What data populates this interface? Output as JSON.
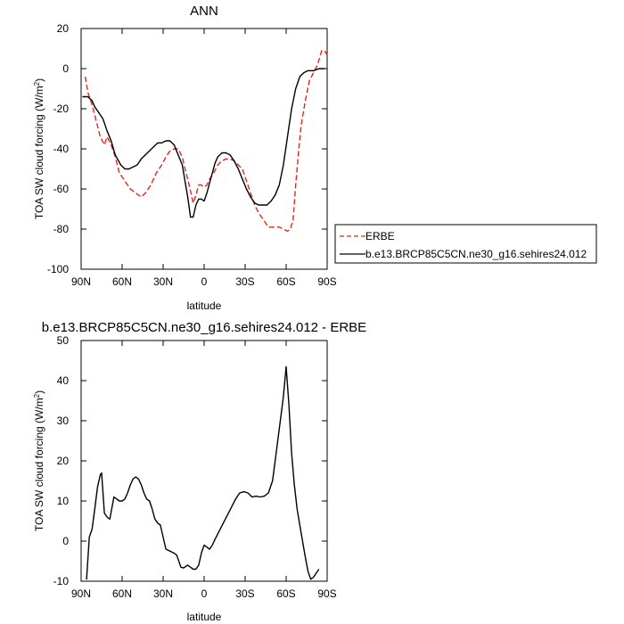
{
  "chart_data": [
    {
      "type": "line",
      "title": "ANN",
      "xlabel": "latitude",
      "ylabel": "TOA SW cloud forcing (W/m²)",
      "xlim": [
        90,
        -90
      ],
      "ylim": [
        -100,
        20
      ],
      "xticks": [
        {
          "value": 90,
          "label": "90N"
        },
        {
          "value": 60,
          "label": "60N"
        },
        {
          "value": 30,
          "label": "30N"
        },
        {
          "value": 0,
          "label": "0"
        },
        {
          "value": -30,
          "label": "30S"
        },
        {
          "value": -60,
          "label": "60S"
        },
        {
          "value": -90,
          "label": "90S"
        }
      ],
      "yticks": [
        20,
        0,
        -20,
        -40,
        -60,
        -80,
        -100
      ],
      "legend_position": "right",
      "series": [
        {
          "name": "ERBE",
          "color": "#e8231f",
          "style": "dashed",
          "points": [
            [
              87,
              -4
            ],
            [
              85,
              -12
            ],
            [
              82,
              -18
            ],
            [
              79,
              -26
            ],
            [
              76,
              -34
            ],
            [
              73,
              -38
            ],
            [
              71,
              -34
            ],
            [
              68,
              -38
            ],
            [
              65,
              -44
            ],
            [
              62,
              -52
            ],
            [
              58,
              -56
            ],
            [
              54,
              -60
            ],
            [
              50,
              -62
            ],
            [
              46,
              -64
            ],
            [
              43,
              -62
            ],
            [
              39,
              -58
            ],
            [
              35,
              -52
            ],
            [
              31,
              -48
            ],
            [
              28,
              -44
            ],
            [
              25,
              -41
            ],
            [
              22,
              -40
            ],
            [
              19,
              -40
            ],
            [
              16,
              -44
            ],
            [
              14,
              -50
            ],
            [
              12,
              -55
            ],
            [
              10,
              -61
            ],
            [
              8,
              -67
            ],
            [
              6,
              -63
            ],
            [
              4,
              -58
            ],
            [
              2,
              -58
            ],
            [
              0,
              -59
            ],
            [
              -2,
              -58
            ],
            [
              -4,
              -55
            ],
            [
              -7,
              -52
            ],
            [
              -10,
              -48
            ],
            [
              -13,
              -46
            ],
            [
              -16,
              -45
            ],
            [
              -19,
              -45
            ],
            [
              -22,
              -46
            ],
            [
              -25,
              -48
            ],
            [
              -28,
              -50
            ],
            [
              -31,
              -56
            ],
            [
              -34,
              -62
            ],
            [
              -37,
              -68
            ],
            [
              -40,
              -72
            ],
            [
              -44,
              -76
            ],
            [
              -47,
              -79
            ],
            [
              -51,
              -79
            ],
            [
              -55,
              -79
            ],
            [
              -58,
              -80
            ],
            [
              -61,
              -81
            ],
            [
              -63,
              -80
            ],
            [
              -65,
              -76
            ],
            [
              -67,
              -58
            ],
            [
              -69,
              -42
            ],
            [
              -71,
              -28
            ],
            [
              -74,
              -16
            ],
            [
              -77,
              -6
            ],
            [
              -80,
              -2
            ],
            [
              -83,
              2
            ],
            [
              -86,
              9
            ],
            [
              -88,
              9
            ],
            [
              -90,
              7
            ]
          ]
        },
        {
          "name": "b.e13.BRCP85C5CN.ne30_g16.sehires24.012",
          "color": "#000000",
          "style": "solid",
          "points": [
            [
              89,
              -14
            ],
            [
              85,
              -14
            ],
            [
              82,
              -16
            ],
            [
              80,
              -19
            ],
            [
              77,
              -22
            ],
            [
              74,
              -25
            ],
            [
              71,
              -31
            ],
            [
              68,
              -36
            ],
            [
              65,
              -43
            ],
            [
              61,
              -48
            ],
            [
              58,
              -50
            ],
            [
              55,
              -50
            ],
            [
              52,
              -49
            ],
            [
              49,
              -48
            ],
            [
              46,
              -45
            ],
            [
              43,
              -43
            ],
            [
              40,
              -41
            ],
            [
              37,
              -39
            ],
            [
              34,
              -37
            ],
            [
              31,
              -37
            ],
            [
              28,
              -36
            ],
            [
              25,
              -36
            ],
            [
              22,
              -38
            ],
            [
              19,
              -43
            ],
            [
              16,
              -48
            ],
            [
              14,
              -56
            ],
            [
              12,
              -64
            ],
            [
              10,
              -74
            ],
            [
              8,
              -74
            ],
            [
              6,
              -68
            ],
            [
              4,
              -65
            ],
            [
              2,
              -65
            ],
            [
              0,
              -66
            ],
            [
              -2,
              -62
            ],
            [
              -4,
              -57
            ],
            [
              -6,
              -52
            ],
            [
              -8,
              -47
            ],
            [
              -10,
              -44
            ],
            [
              -13,
              -42
            ],
            [
              -16,
              -42
            ],
            [
              -19,
              -43
            ],
            [
              -22,
              -46
            ],
            [
              -25,
              -50
            ],
            [
              -28,
              -55
            ],
            [
              -31,
              -60
            ],
            [
              -34,
              -64
            ],
            [
              -37,
              -67
            ],
            [
              -40,
              -68
            ],
            [
              -43,
              -68
            ],
            [
              -46,
              -68
            ],
            [
              -49,
              -66
            ],
            [
              -52,
              -63
            ],
            [
              -55,
              -58
            ],
            [
              -58,
              -48
            ],
            [
              -61,
              -34
            ],
            [
              -64,
              -20
            ],
            [
              -67,
              -10
            ],
            [
              -70,
              -4
            ],
            [
              -73,
              -2
            ],
            [
              -76,
              -1
            ],
            [
              -80,
              -1
            ],
            [
              -84,
              0
            ],
            [
              -88,
              0
            ]
          ]
        }
      ]
    },
    {
      "type": "line",
      "title": "b.e13.BRCP85C5CN.ne30_g16.sehires24.012 - ERBE",
      "xlabel": "latitude",
      "ylabel": "TOA SW cloud forcing (W/m²)",
      "xlim": [
        90,
        -90
      ],
      "ylim": [
        -10,
        50
      ],
      "xticks": [
        {
          "value": 90,
          "label": "90N"
        },
        {
          "value": 60,
          "label": "60N"
        },
        {
          "value": 30,
          "label": "30N"
        },
        {
          "value": 0,
          "label": "0"
        },
        {
          "value": -30,
          "label": "30S"
        },
        {
          "value": -60,
          "label": "60S"
        },
        {
          "value": -90,
          "label": "90S"
        }
      ],
      "yticks": [
        50,
        40,
        30,
        20,
        10,
        0,
        -10
      ],
      "series": [
        {
          "color": "#000000",
          "style": "solid",
          "points": [
            [
              86,
              -9.6
            ],
            [
              84,
              1
            ],
            [
              82,
              3
            ],
            [
              80,
              8
            ],
            [
              78,
              13.5
            ],
            [
              76,
              16.5
            ],
            [
              75,
              17
            ],
            [
              73,
              7
            ],
            [
              71,
              6
            ],
            [
              69,
              5.5
            ],
            [
              66,
              11
            ],
            [
              64,
              10.5
            ],
            [
              62,
              10
            ],
            [
              60,
              10
            ],
            [
              58,
              10.5
            ],
            [
              56,
              12
            ],
            [
              54,
              14
            ],
            [
              52,
              15.5
            ],
            [
              50,
              16
            ],
            [
              48,
              15.5
            ],
            [
              46,
              14
            ],
            [
              44,
              12
            ],
            [
              42,
              10.5
            ],
            [
              40,
              10
            ],
            [
              38,
              8
            ],
            [
              36,
              5.5
            ],
            [
              34,
              4.5
            ],
            [
              32,
              4
            ],
            [
              30,
              1
            ],
            [
              28,
              -2
            ],
            [
              25,
              -2.5
            ],
            [
              22,
              -3
            ],
            [
              20,
              -3.5
            ],
            [
              17,
              -6.5
            ],
            [
              15,
              -6.7
            ],
            [
              12,
              -6
            ],
            [
              10,
              -6.5
            ],
            [
              8,
              -7
            ],
            [
              6,
              -7
            ],
            [
              4,
              -6
            ],
            [
              2,
              -3
            ],
            [
              0,
              -1
            ],
            [
              -2,
              -1.5
            ],
            [
              -4,
              -2
            ],
            [
              -6,
              -1
            ],
            [
              -8,
              0.5
            ],
            [
              -11,
              2.5
            ],
            [
              -14,
              4.5
            ],
            [
              -17,
              6.5
            ],
            [
              -20,
              8.5
            ],
            [
              -23,
              10.5
            ],
            [
              -26,
              12
            ],
            [
              -29,
              12.3
            ],
            [
              -32,
              12
            ],
            [
              -35,
              11
            ],
            [
              -38,
              11.2
            ],
            [
              -41,
              11
            ],
            [
              -44,
              11.2
            ],
            [
              -47,
              12
            ],
            [
              -50,
              15
            ],
            [
              -52,
              20
            ],
            [
              -55,
              28
            ],
            [
              -58,
              36
            ],
            [
              -60,
              43.5
            ],
            [
              -62,
              34
            ],
            [
              -64,
              22
            ],
            [
              -66,
              14
            ],
            [
              -68,
              8
            ],
            [
              -70,
              4
            ],
            [
              -72,
              0
            ],
            [
              -74,
              -4
            ],
            [
              -76,
              -7.5
            ],
            [
              -78,
              -9.5
            ],
            [
              -80,
              -9
            ],
            [
              -82,
              -8
            ],
            [
              -84,
              -7
            ]
          ]
        }
      ]
    }
  ]
}
